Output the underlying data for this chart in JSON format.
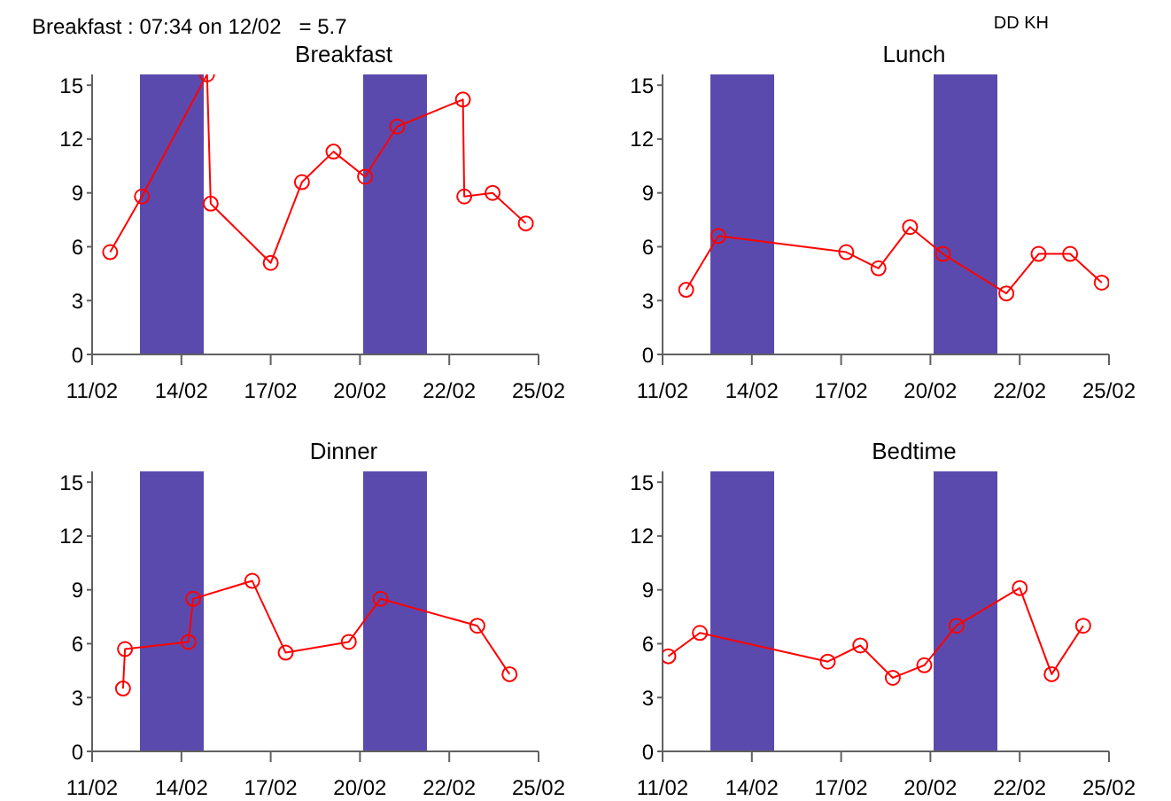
{
  "chart_data": [
    {
      "type": "line",
      "title": "Breakfast",
      "annotations": [
        "Breakfast : 07:34 on 12/02   = 5.7"
      ],
      "xlim": [
        "--02-11T18:00",
        "--02-25T18:00"
      ],
      "xticks": [
        {
          "value": "--02-11T18:00",
          "label": "11/02"
        },
        {
          "value": "--02-14T13:12",
          "label": "14/02"
        },
        {
          "value": "--02-17T08:24",
          "label": "17/02"
        },
        {
          "value": "--02-20T03:36",
          "label": "20/02"
        },
        {
          "value": "--02-22T22:48",
          "label": "22/02"
        },
        {
          "value": "--02-25T18:00",
          "label": "25/02"
        }
      ],
      "ylim": [
        0,
        15.6
      ],
      "yticks": [
        0,
        3,
        6,
        9,
        12,
        15
      ],
      "grid": false,
      "marker": "circle",
      "line_style": "solid",
      "bands": [
        {
          "axis": "x",
          "from": "--02-13T06:00",
          "to": "--02-15T06:00",
          "color": "#5b4aad"
        },
        {
          "axis": "x",
          "from": "--02-20T06:00",
          "to": "--02-22T06:00",
          "color": "#5b4aad"
        }
      ],
      "series": [
        {
          "color": "#ff0000",
          "x": [
            "--02-12T07:34",
            "--02-13T07:30",
            "--02-15T08:30",
            "--02-15T11:15",
            "--02-17T08:25",
            "--02-18T07:55",
            "--02-19T07:40",
            "--02-20T07:25",
            "--02-21T07:40",
            "--02-23T09:05",
            "--02-23T10:05",
            "--02-24T07:25",
            "--02-25T08:25"
          ],
          "values": [
            5.7,
            8.8,
            15.6,
            8.4,
            5.1,
            9.6,
            11.3,
            9.9,
            12.7,
            14.2,
            8.8,
            9.0,
            7.3
          ]
        }
      ]
    },
    {
      "type": "line",
      "title": "Lunch",
      "annotations": [
        "DD KH"
      ],
      "xlim": [
        "--02-11T18:00",
        "--02-25T18:00"
      ],
      "xticks": [
        {
          "value": "--02-11T18:00",
          "label": "11/02"
        },
        {
          "value": "--02-14T13:12",
          "label": "14/02"
        },
        {
          "value": "--02-17T08:24",
          "label": "17/02"
        },
        {
          "value": "--02-20T03:36",
          "label": "20/02"
        },
        {
          "value": "--02-22T22:48",
          "label": "22/02"
        },
        {
          "value": "--02-25T18:00",
          "label": "25/02"
        }
      ],
      "ylim": [
        0,
        15.6
      ],
      "yticks": [
        0,
        3,
        6,
        9,
        12,
        15
      ],
      "grid": false,
      "marker": "circle",
      "line_style": "solid",
      "bands": [
        {
          "axis": "x",
          "from": "--02-13T06:00",
          "to": "--02-15T06:00",
          "color": "#5b4aad"
        },
        {
          "axis": "x",
          "from": "--02-20T06:00",
          "to": "--02-22T06:00",
          "color": "#5b4aad"
        }
      ],
      "series": [
        {
          "color": "#ff0000",
          "x": [
            "--02-12T11:45",
            "--02-13T12:00",
            "--02-17T12:15",
            "--02-18T12:30",
            "--02-19T12:15",
            "--02-20T13:00",
            "--02-22T12:45",
            "--02-23T13:00",
            "--02-24T12:45",
            "--02-25T12:30"
          ],
          "values": [
            3.6,
            6.6,
            5.7,
            4.8,
            7.1,
            5.6,
            3.4,
            5.6,
            5.6,
            4.0
          ]
        }
      ]
    },
    {
      "type": "line",
      "title": "Dinner",
      "xlim": [
        "--02-11T18:00",
        "--02-25T18:00"
      ],
      "xticks": [
        {
          "value": "--02-11T18:00",
          "label": "11/02"
        },
        {
          "value": "--02-14T13:12",
          "label": "14/02"
        },
        {
          "value": "--02-17T08:24",
          "label": "17/02"
        },
        {
          "value": "--02-20T03:36",
          "label": "20/02"
        },
        {
          "value": "--02-22T22:48",
          "label": "22/02"
        },
        {
          "value": "--02-25T18:00",
          "label": "25/02"
        }
      ],
      "ylim": [
        0,
        15.6
      ],
      "yticks": [
        0,
        3,
        6,
        9,
        12,
        15
      ],
      "grid": false,
      "marker": "circle",
      "line_style": "solid",
      "bands": [
        {
          "axis": "x",
          "from": "--02-13T06:00",
          "to": "--02-15T06:00",
          "color": "#5b4aad"
        },
        {
          "axis": "x",
          "from": "--02-20T06:00",
          "to": "--02-22T06:00",
          "color": "#5b4aad"
        }
      ],
      "series": [
        {
          "color": "#ff0000",
          "x": [
            "--02-12T17:15",
            "--02-12T18:45",
            "--02-14T18:30",
            "--02-14T22:05",
            "--02-16T18:30",
            "--02-17T19:40",
            "--02-19T19:10",
            "--02-20T19:00",
            "--02-23T19:55",
            "--02-24T20:10"
          ],
          "values": [
            3.5,
            5.7,
            6.1,
            8.5,
            9.5,
            5.5,
            6.1,
            8.5,
            7.0,
            4.3
          ]
        }
      ]
    },
    {
      "type": "line",
      "title": "Bedtime",
      "xlim": [
        "--02-11T18:00",
        "--02-25T18:00"
      ],
      "xticks": [
        {
          "value": "--02-11T18:00",
          "label": "11/02"
        },
        {
          "value": "--02-14T13:12",
          "label": "14/02"
        },
        {
          "value": "--02-17T08:24",
          "label": "17/02"
        },
        {
          "value": "--02-20T03:36",
          "label": "20/02"
        },
        {
          "value": "--02-22T22:48",
          "label": "22/02"
        },
        {
          "value": "--02-25T18:00",
          "label": "25/02"
        }
      ],
      "ylim": [
        0,
        15.6
      ],
      "yticks": [
        0,
        3,
        6,
        9,
        12,
        15
      ],
      "grid": false,
      "marker": "circle",
      "line_style": "solid",
      "bands": [
        {
          "axis": "x",
          "from": "--02-13T06:00",
          "to": "--02-15T06:00",
          "color": "#5b4aad"
        },
        {
          "axis": "x",
          "from": "--02-20T06:00",
          "to": "--02-22T06:00",
          "color": "#5b4aad"
        }
      ],
      "series": [
        {
          "color": "#ff0000",
          "x": [
            "--02-11T22:20",
            "--02-12T22:05",
            "--02-16T22:20",
            "--02-17T22:50",
            "--02-18T23:15",
            "--02-19T23:00",
            "--02-20T23:15",
            "--02-22T22:50",
            "--02-23T22:50",
            "--02-24T22:35"
          ],
          "values": [
            5.3,
            6.6,
            5.0,
            5.9,
            4.1,
            4.8,
            7.0,
            9.1,
            4.3,
            7.0
          ]
        }
      ]
    }
  ]
}
